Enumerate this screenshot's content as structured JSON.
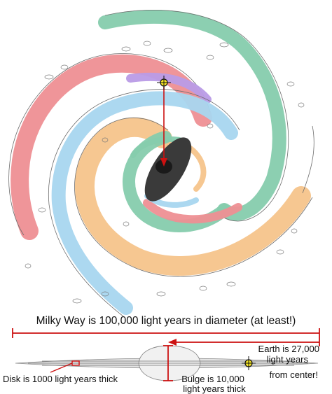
{
  "labels": {
    "diameter": "Milky Way is 100,000 light years in diameter (at least!)",
    "earth_line1": "Earth is 27,000",
    "earth_line2": "light years",
    "earth_line3": "from center!",
    "disk": "Disk is 1000 light years thick",
    "bulge_line1": "Bulge is 10,000",
    "bulge_line2": "light years thick"
  },
  "colors": {
    "red_arm": "#ee8f94",
    "blue_arm": "#a8d6ef",
    "green_arm": "#86ccad",
    "orange_arm": "#f6c48b",
    "purple_arm": "#b99be6",
    "bar": "#3a3a3a",
    "measure": "#cc1111",
    "earth_marker": "#f6e624"
  }
}
